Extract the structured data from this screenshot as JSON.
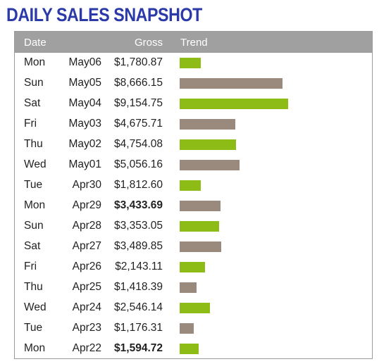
{
  "title": "DAILY SALES SNAPSHOT",
  "header": {
    "date": "Date",
    "gross": "Gross",
    "trend": "Trend"
  },
  "colors": {
    "title": "#2b3aa8",
    "header_bg": "#a0a0a0",
    "bar_green": "#8ebc16",
    "bar_brown": "#9a8a7e"
  },
  "chart_data": {
    "type": "bar",
    "title": "DAILY SALES SNAPSHOT",
    "value_unit": "USD",
    "rows": [
      {
        "day": "Mon",
        "date": "May06",
        "gross": "$1,780.87",
        "value": 1780.87,
        "color": "green",
        "bold": false
      },
      {
        "day": "Sun",
        "date": "May05",
        "gross": "$8,666.15",
        "value": 8666.15,
        "color": "brown",
        "bold": false
      },
      {
        "day": "Sat",
        "date": "May04",
        "gross": "$9,154.75",
        "value": 9154.75,
        "color": "green",
        "bold": false
      },
      {
        "day": "Fri",
        "date": "May03",
        "gross": "$4,675.71",
        "value": 4675.71,
        "color": "brown",
        "bold": false
      },
      {
        "day": "Thu",
        "date": "May02",
        "gross": "$4,754.08",
        "value": 4754.08,
        "color": "green",
        "bold": false
      },
      {
        "day": "Wed",
        "date": "May01",
        "gross": "$5,056.16",
        "value": 5056.16,
        "color": "brown",
        "bold": false
      },
      {
        "day": "Tue",
        "date": "Apr30",
        "gross": "$1,812.60",
        "value": 1812.6,
        "color": "green",
        "bold": false
      },
      {
        "day": "Mon",
        "date": "Apr29",
        "gross": "$3,433.69",
        "value": 3433.69,
        "color": "brown",
        "bold": true
      },
      {
        "day": "Sun",
        "date": "Apr28",
        "gross": "$3,353.05",
        "value": 3353.05,
        "color": "green",
        "bold": false
      },
      {
        "day": "Sat",
        "date": "Apr27",
        "gross": "$3,489.85",
        "value": 3489.85,
        "color": "brown",
        "bold": false
      },
      {
        "day": "Fri",
        "date": "Apr26",
        "gross": "$2,143.11",
        "value": 2143.11,
        "color": "green",
        "bold": false
      },
      {
        "day": "Thu",
        "date": "Apr25",
        "gross": "$1,418.39",
        "value": 1418.39,
        "color": "brown",
        "bold": false
      },
      {
        "day": "Wed",
        "date": "Apr24",
        "gross": "$2,546.14",
        "value": 2546.14,
        "color": "green",
        "bold": false
      },
      {
        "day": "Tue",
        "date": "Apr23",
        "gross": "$1,176.31",
        "value": 1176.31,
        "color": "brown",
        "bold": false
      },
      {
        "day": "Mon",
        "date": "Apr22",
        "gross": "$1,594.72",
        "value": 1594.72,
        "color": "green",
        "bold": true
      }
    ]
  }
}
